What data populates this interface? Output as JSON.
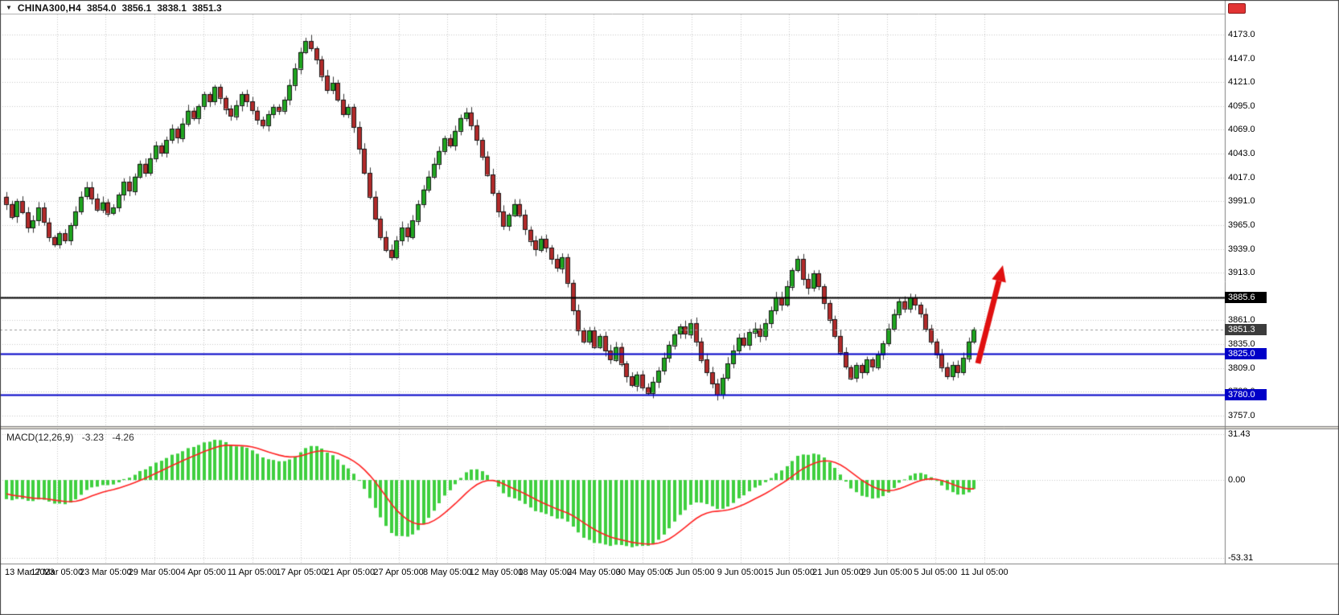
{
  "window": {
    "title_symbol": "CHINA300,H4"
  },
  "colors": {
    "background": "#FFFFFF",
    "grid": "#C8C8C8",
    "bull": "#1FA51F",
    "bear": "#B22A2A",
    "candle_outline": "#1A1A1A",
    "wick": "#333333",
    "macd_hist": "#3FCF3F",
    "macd_signal": "#FF2222",
    "axis_text": "#000000",
    "arrow": "#E01010",
    "frame": "#3A3A3A",
    "separator": "#808080"
  },
  "chart_data": {
    "type": "candlestick",
    "title": "CHINA300,H4",
    "ohlc_readout": {
      "open": "3854.0",
      "high": "3856.1",
      "low": "3838.1",
      "close": "3851.3"
    },
    "x_axis": {
      "labels": [
        "13 Mar 2023",
        "17 Mar 05:00",
        "23 Mar 05:00",
        "29 Mar 05:00",
        "4 Apr 05:00",
        "11 Apr 05:00",
        "17 Apr 05:00",
        "21 Apr 05:00",
        "27 Apr 05:00",
        "8 May 05:00",
        "12 May 05:00",
        "18 May 05:00",
        "24 May 05:00",
        "30 May 05:00",
        "5 Jun 05:00",
        "9 Jun 05:00",
        "15 Jun 05:00",
        "21 Jun 05:00",
        "29 Jun 05:00",
        "5 Jul 05:00",
        "11 Jul 05:00"
      ]
    },
    "y_axis": {
      "grid_max": 4173.0,
      "grid_min": 3757.0,
      "grid_step": 26.0,
      "tick_labels": [
        "4173.0",
        "4147.0",
        "4121.0",
        "4095.0",
        "4069.0",
        "4043.0",
        "4017.0",
        "3991.0",
        "3965.0",
        "3939.0",
        "3913.0",
        "3887.0",
        "3861.0",
        "3835.0",
        "3809.0",
        "3783.0",
        "3757.0"
      ]
    },
    "series": {
      "first_open": 3996,
      "closes": [
        3988,
        3974,
        3991,
        3979,
        3962,
        3970,
        3984,
        3968,
        3952,
        3944,
        3956,
        3948,
        3965,
        3980,
        3996,
        4006,
        3994,
        3982,
        3990,
        3978,
        3984,
        3998,
        4012,
        4002,
        4018,
        4032,
        4022,
        4038,
        4052,
        4044,
        4058,
        4070,
        4060,
        4076,
        4090,
        4082,
        4095,
        4108,
        4100,
        4116,
        4104,
        4092,
        4084,
        4096,
        4108,
        4100,
        4090,
        4080,
        4074,
        4086,
        4094,
        4090,
        4102,
        4118,
        4136,
        4154,
        4166,
        4158,
        4146,
        4128,
        4112,
        4120,
        4102,
        4086,
        4094,
        4072,
        4048,
        4022,
        3996,
        3972,
        3952,
        3938,
        3930,
        3948,
        3962,
        3952,
        3970,
        3988,
        4004,
        4018,
        4032,
        4046,
        4060,
        4052,
        4068,
        4082,
        4088,
        4074,
        4058,
        4040,
        4020,
        4000,
        3980,
        3964,
        3976,
        3988,
        3976,
        3960,
        3948,
        3938,
        3950,
        3940,
        3928,
        3918,
        3930,
        3902,
        3872,
        3850,
        3838,
        3850,
        3832,
        3844,
        3828,
        3818,
        3832,
        3814,
        3800,
        3790,
        3802,
        3788,
        3782,
        3794,
        3806,
        3820,
        3834,
        3846,
        3854,
        3846,
        3858,
        3838,
        3818,
        3804,
        3792,
        3780,
        3798,
        3814,
        3828,
        3842,
        3834,
        3848,
        3852,
        3844,
        3858,
        3872,
        3886,
        3878,
        3898,
        3916,
        3928,
        3906,
        3896,
        3912,
        3898,
        3880,
        3862,
        3844,
        3826,
        3810,
        3798,
        3812,
        3804,
        3818,
        3810,
        3824,
        3836,
        3852,
        3868,
        3882,
        3874,
        3886,
        3878,
        3868,
        3852,
        3838,
        3824,
        3810,
        3800,
        3812,
        3804,
        3820,
        3838,
        3851.3
      ]
    },
    "levels": [
      {
        "price": 3885.6,
        "label": "3885.6",
        "line_color": "#000000",
        "line_style": "solid",
        "line_width": 2,
        "badge_bg": "#000000"
      },
      {
        "price": 3851.3,
        "label": "3851.3",
        "line_color": "#9A9A9A",
        "line_style": "dash",
        "line_width": 1,
        "badge_bg": "#3C3C3C"
      },
      {
        "price": 3825.0,
        "label": "3825.0",
        "line_color": "#0000C8",
        "line_style": "solid",
        "line_width": 2,
        "badge_bg": "#0000C8"
      },
      {
        "price": 3780.0,
        "label": "3780.0",
        "line_color": "#0000C8",
        "line_style": "solid",
        "line_width": 2,
        "badge_bg": "#0000C8"
      }
    ],
    "current_price": 3851.3,
    "indicator": {
      "type": "macd",
      "label": "MACD(12,26,9)",
      "readout_main": "-3.23",
      "readout_signal": "-4.26",
      "params": [
        12,
        26,
        9
      ],
      "axis_ticks": [
        31.43,
        0.0,
        -53.31
      ]
    },
    "annotations": [
      {
        "type": "arrow-up",
        "color": "#E01010",
        "from": {
          "x": 1216,
          "y": 452
        },
        "to": {
          "x": 1247,
          "y": 330
        }
      }
    ]
  }
}
